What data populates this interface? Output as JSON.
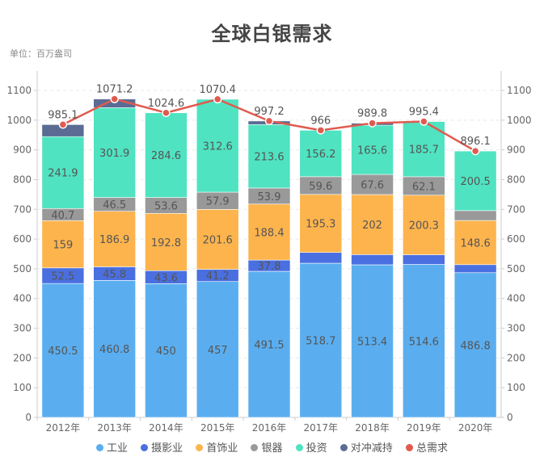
{
  "title": "全球白银需求",
  "unit": "单位：百万盎司",
  "chart_data": {
    "type": "bar",
    "stacked": true,
    "title": "全球白银需求",
    "subtitle": "单位：百万盎司",
    "categories": [
      "2012年",
      "2013年",
      "2014年",
      "2015年",
      "2016年",
      "2017年",
      "2018年",
      "2019年",
      "2020年"
    ],
    "ylim": [
      0,
      1100
    ],
    "yticks": [
      0,
      100,
      200,
      300,
      400,
      500,
      600,
      700,
      800,
      900,
      1000,
      1100
    ],
    "grid": true,
    "legend_position": "bottom",
    "series": [
      {
        "name": "工业",
        "color": "#5aaef0",
        "values": [
          450.5,
          460.8,
          450,
          457,
          491.5,
          518.7,
          513.4,
          514.6,
          486.8
        ],
        "labels": [
          true,
          true,
          true,
          true,
          true,
          true,
          true,
          true,
          true
        ]
      },
      {
        "name": "摄影业",
        "color": "#4a6fe0",
        "values": [
          52.5,
          45.8,
          43.6,
          41.2,
          37.8,
          36.2,
          34.3,
          32.7,
          27.1
        ],
        "labels": [
          true,
          true,
          true,
          true,
          true,
          false,
          false,
          false,
          false
        ]
      },
      {
        "name": "首饰业",
        "color": "#fdb44d",
        "values": [
          159,
          186.9,
          192.8,
          201.6,
          188.4,
          195.3,
          202,
          200.3,
          148.6
        ],
        "labels": [
          true,
          true,
          true,
          true,
          true,
          true,
          true,
          true,
          true
        ]
      },
      {
        "name": "银器",
        "color": "#999999",
        "values": [
          40.7,
          46.5,
          53.6,
          57.9,
          53.9,
          59.6,
          67.6,
          62.1,
          33.1
        ],
        "labels": [
          true,
          true,
          true,
          true,
          true,
          true,
          true,
          true,
          false
        ]
      },
      {
        "name": "投资",
        "color": "#4fe3c1",
        "values": [
          241.9,
          301.9,
          284.6,
          312.6,
          213.6,
          156.2,
          165.6,
          185.7,
          200.5
        ],
        "labels": [
          true,
          true,
          true,
          true,
          true,
          true,
          true,
          true,
          true
        ]
      },
      {
        "name": "对冲减持",
        "color": "#5a6b94",
        "values": [
          40.5,
          29.3,
          0,
          0,
          12,
          0,
          6.9,
          0,
          0
        ],
        "labels": [
          false,
          false,
          false,
          false,
          false,
          false,
          false,
          false,
          false
        ]
      }
    ],
    "line": {
      "name": "总需求",
      "color": "#e05a4f",
      "values": [
        985.1,
        1071.2,
        1024.6,
        1070.4,
        997.2,
        966,
        989.8,
        995.4,
        896.1
      ]
    }
  },
  "legend": [
    {
      "label": "工业",
      "color": "#5aaef0"
    },
    {
      "label": "摄影业",
      "color": "#4a6fe0"
    },
    {
      "label": "首饰业",
      "color": "#fdb44d"
    },
    {
      "label": "银器",
      "color": "#999999"
    },
    {
      "label": "投资",
      "color": "#4fe3c1"
    },
    {
      "label": "对冲减持",
      "color": "#5a6b94"
    },
    {
      "label": "总需求",
      "color": "#e05a4f"
    }
  ]
}
